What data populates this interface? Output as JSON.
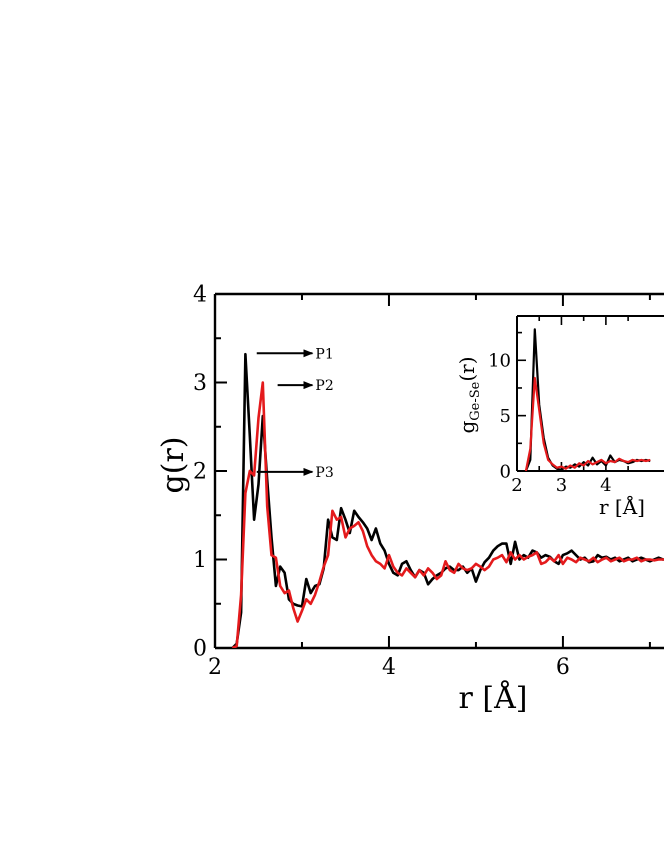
{
  "chart_data": [
    {
      "id": "main",
      "type": "line",
      "xlabel": "r [Å]",
      "ylabel": "g(r)",
      "xlim": [
        2,
        7.3
      ],
      "ylim": [
        0,
        4
      ],
      "xticks": [
        2,
        4,
        6
      ],
      "yticks": [
        0,
        1,
        2,
        3,
        4
      ],
      "grid": false,
      "series": [
        {
          "color": "#000000",
          "x": [
            2.2,
            2.25,
            2.3,
            2.35,
            2.4,
            2.45,
            2.5,
            2.55,
            2.6,
            2.65,
            2.7,
            2.75,
            2.8,
            2.85,
            2.9,
            2.95,
            3.0,
            3.05,
            3.1,
            3.15,
            3.2,
            3.25,
            3.3,
            3.35,
            3.4,
            3.45,
            3.5,
            3.55,
            3.6,
            3.65,
            3.7,
            3.75,
            3.8,
            3.85,
            3.9,
            3.95,
            4.0,
            4.05,
            4.1,
            4.15,
            4.2,
            4.25,
            4.3,
            4.35,
            4.4,
            4.45,
            4.5,
            4.55,
            4.6,
            4.65,
            4.7,
            4.75,
            4.8,
            4.85,
            4.9,
            4.95,
            5.0,
            5.05,
            5.1,
            5.15,
            5.2,
            5.25,
            5.3,
            5.35,
            5.4,
            5.45,
            5.5,
            5.55,
            5.6,
            5.65,
            5.7,
            5.75,
            5.8,
            5.85,
            5.9,
            5.95,
            6.0,
            6.05,
            6.1,
            6.15,
            6.2,
            6.25,
            6.3,
            6.35,
            6.4,
            6.45,
            6.5,
            6.55,
            6.6,
            6.65,
            6.7,
            6.75,
            6.8,
            6.85,
            6.9,
            6.95,
            7.0,
            7.05,
            7.1,
            7.15,
            7.2,
            7.25,
            7.3
          ],
          "y": [
            0.0,
            0.05,
            0.4,
            3.32,
            2.4,
            1.45,
            1.85,
            2.62,
            1.9,
            1.25,
            0.7,
            0.92,
            0.85,
            0.55,
            0.5,
            0.48,
            0.47,
            0.78,
            0.62,
            0.7,
            0.72,
            0.9,
            1.45,
            1.25,
            1.22,
            1.58,
            1.45,
            1.3,
            1.55,
            1.48,
            1.42,
            1.35,
            1.22,
            1.35,
            1.18,
            1.1,
            0.95,
            0.85,
            0.82,
            0.95,
            0.98,
            0.88,
            0.8,
            0.88,
            0.85,
            0.72,
            0.78,
            0.82,
            0.85,
            0.9,
            0.92,
            0.88,
            0.88,
            0.92,
            0.85,
            0.9,
            0.75,
            0.88,
            0.97,
            1.02,
            1.1,
            1.15,
            1.18,
            1.18,
            0.95,
            1.2,
            1.0,
            1.05,
            1.02,
            1.1,
            1.08,
            1.02,
            1.05,
            1.03,
            0.98,
            0.95,
            1.05,
            1.07,
            1.1,
            1.05,
            1.0,
            1.02,
            0.97,
            0.98,
            1.05,
            1.02,
            1.03,
            1.0,
            1.02,
            0.98,
            1.0,
            1.02,
            0.98,
            1.0,
            1.02,
            1.0,
            0.98,
            1.0,
            1.02,
            1.0,
            1.0,
            1.0,
            1.0
          ]
        },
        {
          "color": "#e41a1c",
          "x": [
            2.2,
            2.25,
            2.3,
            2.35,
            2.4,
            2.45,
            2.5,
            2.55,
            2.6,
            2.65,
            2.7,
            2.75,
            2.8,
            2.85,
            2.9,
            2.95,
            3.0,
            3.05,
            3.1,
            3.15,
            3.2,
            3.25,
            3.3,
            3.35,
            3.4,
            3.45,
            3.5,
            3.55,
            3.6,
            3.65,
            3.7,
            3.75,
            3.8,
            3.85,
            3.9,
            3.95,
            4.0,
            4.05,
            4.1,
            4.15,
            4.2,
            4.25,
            4.3,
            4.35,
            4.4,
            4.45,
            4.5,
            4.55,
            4.6,
            4.65,
            4.7,
            4.75,
            4.8,
            4.85,
            4.9,
            4.95,
            5.0,
            5.05,
            5.1,
            5.15,
            5.2,
            5.25,
            5.3,
            5.35,
            5.4,
            5.45,
            5.5,
            5.55,
            5.6,
            5.65,
            5.7,
            5.75,
            5.8,
            5.85,
            5.9,
            5.95,
            6.0,
            6.05,
            6.1,
            6.15,
            6.2,
            6.25,
            6.3,
            6.35,
            6.4,
            6.45,
            6.5,
            6.55,
            6.6,
            6.65,
            6.7,
            6.75,
            6.8,
            6.85,
            6.9,
            6.95,
            7.0,
            7.05,
            7.1,
            7.15,
            7.2,
            7.25,
            7.3
          ],
          "y": [
            0.0,
            0.02,
            0.6,
            1.75,
            2.0,
            1.95,
            2.6,
            3.0,
            1.6,
            1.05,
            1.02,
            0.7,
            0.62,
            0.65,
            0.45,
            0.3,
            0.42,
            0.55,
            0.5,
            0.6,
            0.75,
            0.92,
            1.05,
            1.55,
            1.45,
            1.48,
            1.25,
            1.35,
            1.38,
            1.42,
            1.32,
            1.15,
            1.05,
            0.98,
            0.95,
            0.9,
            1.05,
            0.92,
            0.85,
            0.82,
            0.9,
            0.85,
            0.8,
            0.88,
            0.82,
            0.9,
            0.85,
            0.78,
            0.82,
            0.98,
            0.88,
            0.85,
            0.95,
            0.9,
            0.88,
            0.9,
            0.95,
            0.92,
            0.88,
            0.92,
            1.0,
            1.02,
            1.05,
            0.97,
            1.08,
            1.0,
            1.05,
            1.0,
            1.03,
            1.05,
            1.08,
            0.95,
            0.97,
            1.02,
            0.98,
            1.05,
            0.95,
            1.02,
            1.0,
            0.97,
            1.02,
            1.0,
            0.98,
            1.02,
            0.97,
            1.0,
            1.02,
            0.98,
            1.0,
            1.02,
            0.98,
            1.0,
            1.0,
            1.02,
            0.98,
            1.0,
            1.0,
            0.99,
            1.0,
            1.0,
            1.0,
            1.0,
            1.0
          ]
        }
      ],
      "annotations": [
        {
          "text": "P1",
          "arrow_from": [
            2.48,
            3.33
          ],
          "arrow_to": [
            3.12,
            3.33
          ]
        },
        {
          "text": "P2",
          "arrow_from": [
            2.72,
            2.97
          ],
          "arrow_to": [
            3.12,
            2.97
          ]
        },
        {
          "text": "P3",
          "arrow_from": [
            2.48,
            1.99
          ],
          "arrow_to": [
            3.12,
            1.99
          ]
        }
      ]
    },
    {
      "id": "inset",
      "type": "line",
      "xlabel": "r [Å]",
      "ylabel_main": "g",
      "ylabel_sub": "Ge-Se",
      "ylabel_tail": "(r)",
      "xlim": [
        2,
        5.6
      ],
      "ylim": [
        0,
        14
      ],
      "xticks": [
        2,
        3,
        4
      ],
      "yticks": [
        0,
        5,
        10
      ],
      "grid": false,
      "series": [
        {
          "color": "#000000",
          "x": [
            2.2,
            2.3,
            2.4,
            2.5,
            2.6,
            2.7,
            2.8,
            2.9,
            3.0,
            3.1,
            3.2,
            3.3,
            3.4,
            3.5,
            3.6,
            3.7,
            3.8,
            3.9,
            4.0,
            4.1,
            4.2,
            4.3,
            4.4,
            4.5,
            4.6,
            4.7,
            4.8,
            4.9,
            5.0
          ],
          "y": [
            0.0,
            1.0,
            12.8,
            6.0,
            3.0,
            1.2,
            0.5,
            0.2,
            0.1,
            0.4,
            0.3,
            0.6,
            0.4,
            0.8,
            0.5,
            1.2,
            0.6,
            0.9,
            0.5,
            1.4,
            0.8,
            1.0,
            0.9,
            0.7,
            0.8,
            1.0,
            0.9,
            1.0,
            0.9
          ]
        },
        {
          "color": "#e41a1c",
          "x": [
            2.2,
            2.3,
            2.4,
            2.5,
            2.6,
            2.7,
            2.8,
            2.9,
            3.0,
            3.1,
            3.2,
            3.3,
            3.4,
            3.5,
            3.6,
            3.7,
            3.8,
            3.9,
            4.0,
            4.1,
            4.2,
            4.3,
            4.4,
            4.5,
            4.6,
            4.7,
            4.8,
            4.9,
            5.0
          ],
          "y": [
            0.0,
            2.0,
            8.4,
            5.5,
            2.5,
            1.0,
            0.6,
            0.3,
            0.4,
            0.2,
            0.5,
            0.3,
            0.7,
            0.5,
            0.9,
            0.6,
            0.8,
            1.0,
            0.7,
            0.9,
            0.8,
            1.1,
            0.9,
            0.8,
            1.0,
            0.9,
            1.0,
            0.9,
            1.0
          ]
        }
      ]
    }
  ]
}
